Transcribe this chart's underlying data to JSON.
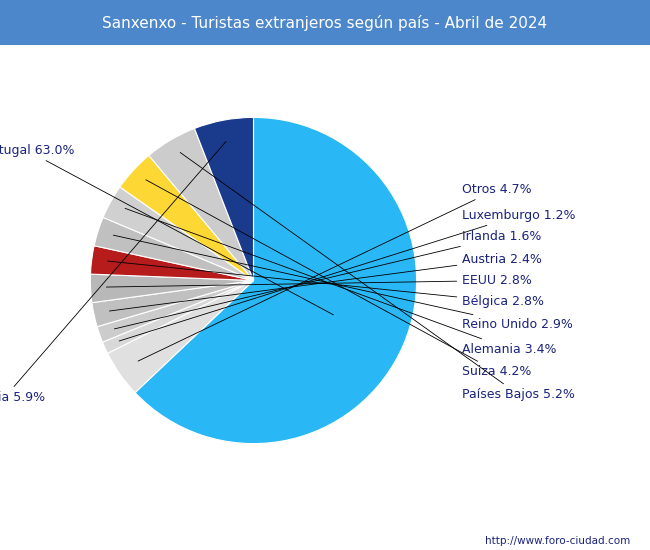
{
  "title": "Sanxenxo - Turistas extranjeros según país - Abril de 2024",
  "title_bg_color": "#4d87cb",
  "title_text_color": "#ffffff",
  "footer": "http://www.foro-ciudad.com",
  "labels": [
    "Portugal",
    "Otros",
    "Luxemburgo",
    "Irlanda",
    "Austria",
    "EEUU",
    "Bélgica",
    "Reino Unido",
    "Alemania",
    "Suiza",
    "Países Bajos",
    "Francia"
  ],
  "values": [
    63.0,
    4.7,
    1.2,
    1.6,
    2.4,
    2.8,
    2.8,
    2.9,
    3.4,
    4.2,
    5.2,
    5.9
  ],
  "colors": [
    "#29b8f5",
    "#e0e0e0",
    "#d8d8d8",
    "#cccccc",
    "#c0c0c0",
    "#b8b8b8",
    "#b71c1c",
    "#c0c0c0",
    "#d0d0d0",
    "#fdd835",
    "#cccccc",
    "#1a3a8c"
  ],
  "label_color": "#1a237e",
  "label_fontsize": 9,
  "bg_color": "#ffffff",
  "title_fontsize": 11,
  "footer_fontsize": 7.5
}
